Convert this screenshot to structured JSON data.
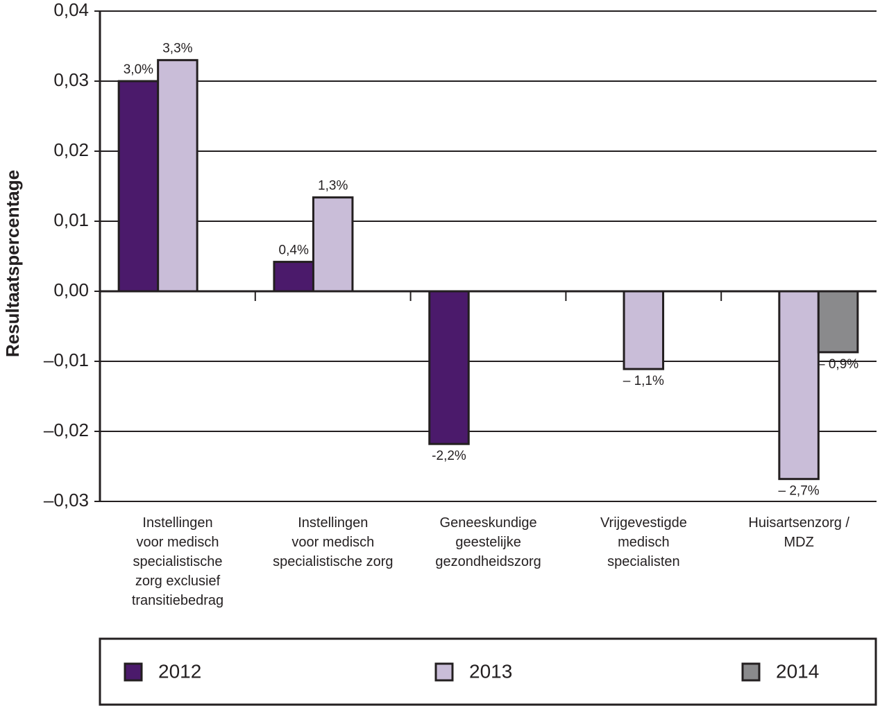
{
  "chart_data": {
    "type": "bar",
    "y_label": "Resultaatspercentage",
    "categories": [
      "Instellingen\nvoor medisch\nspecialistische\nzorg exclusief\ntransitiebedrag",
      "Instellingen\nvoor medisch\nspecialistische zorg",
      "Geneeskundige\ngeestelijke\ngezondheidszorg",
      "Vrijgevestigde\nmedisch\nspecialisten",
      "Huisartsenzorg /\nMDZ"
    ],
    "series": [
      {
        "name": "2012",
        "color": "#4b1a6b",
        "values": [
          0.03,
          0.0042,
          -0.0218,
          null,
          null
        ],
        "value_labels": [
          "3,0%",
          "0,4%",
          "-2,2%",
          null,
          null
        ]
      },
      {
        "name": "2013",
        "color": "#c9bdd8",
        "values": [
          0.033,
          0.0134,
          null,
          -0.0111,
          -0.0268
        ],
        "value_labels": [
          "3,3%",
          "1,3%",
          null,
          "– 1,1%",
          "– 2,7%"
        ]
      },
      {
        "name": "2014",
        "color": "#8a8a8c",
        "values": [
          null,
          null,
          null,
          null,
          -0.0087
        ],
        "value_labels": [
          null,
          null,
          null,
          null,
          "– 0,9%"
        ]
      }
    ],
    "ylim": [
      -0.03,
      0.04
    ],
    "yticks": [
      {
        "value": -0.03,
        "label": "–0,03"
      },
      {
        "value": -0.02,
        "label": "–0,02"
      },
      {
        "value": -0.01,
        "label": "–0,01"
      },
      {
        "value": 0,
        "label": "0,00"
      },
      {
        "value": 0.01,
        "label": "0,01"
      },
      {
        "value": 0.02,
        "label": "0,02"
      },
      {
        "value": 0.03,
        "label": "0,03"
      },
      {
        "value": 0.04,
        "label": "0,04"
      }
    ],
    "grid": true,
    "legend": "bottom"
  }
}
